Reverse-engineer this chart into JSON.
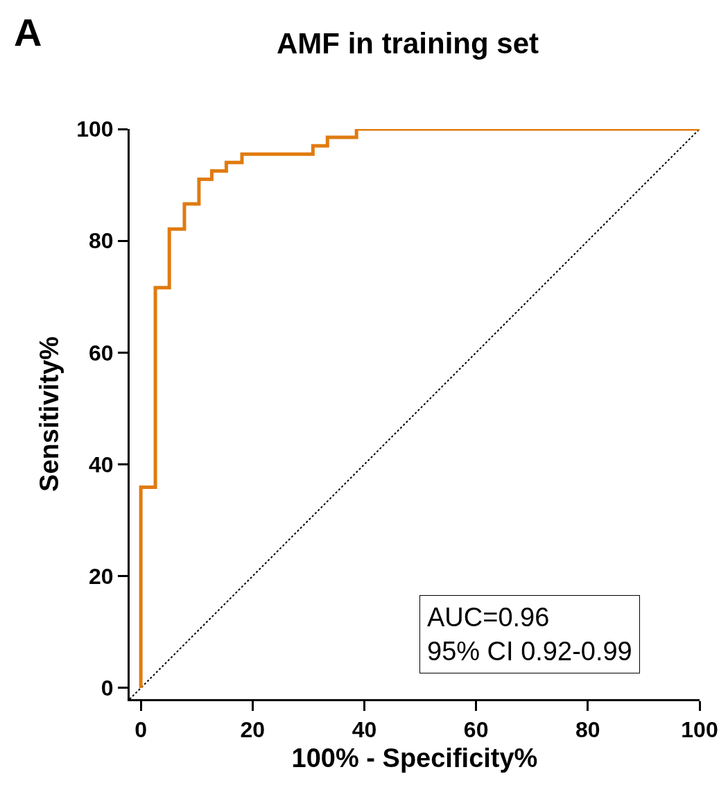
{
  "chart_data": {
    "type": "step",
    "title": "AMF in training set",
    "xlabel": "100% - Specificity%",
    "ylabel": "Sensitivity%",
    "series": [
      {
        "color": "#e07b10",
        "x": [
          0,
          2.6,
          5.1,
          7.8,
          10.4,
          12.7,
          15.3,
          18.1,
          30.8,
          33.4,
          38.6,
          100
        ],
        "values": [
          0,
          35.9,
          71.6,
          82.1,
          86.6,
          91.0,
          92.5,
          94.0,
          95.5,
          97.0,
          98.5,
          100
        ]
      },
      {
        "type": "line",
        "color": "#000000",
        "line_style": "dotted",
        "x": [
          -2,
          100
        ],
        "values": [
          -2,
          100
        ]
      }
    ],
    "xlim": [
      -2,
      100
    ],
    "ylim": [
      -2,
      100
    ],
    "xticks": [
      0,
      20,
      40,
      60,
      80,
      100
    ],
    "yticks": [
      0,
      20,
      40,
      60,
      80,
      100
    ],
    "grid": false,
    "marker": "none",
    "annotations": [
      "A",
      "AUC=0.96\n95% CI 0.92-0.99"
    ]
  }
}
